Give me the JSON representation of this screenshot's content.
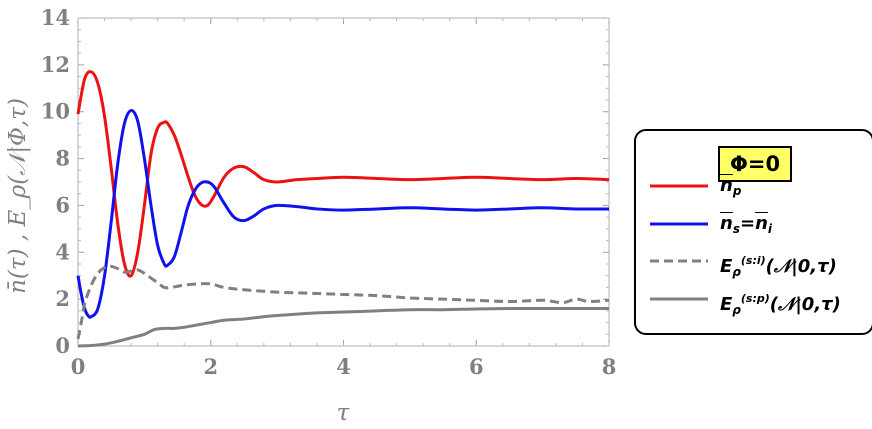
{
  "chart_data": {
    "type": "line",
    "xlabel": "τ",
    "ylabel": "n̄(τ) , E_ρ(𝒩|Φ,τ)",
    "xlim": [
      0,
      8
    ],
    "ylim": [
      0,
      14
    ],
    "xticks": [
      "0",
      "2",
      "4",
      "6",
      "8"
    ],
    "yticks": [
      "0",
      "2",
      "4",
      "6",
      "8",
      "10",
      "12",
      "14"
    ],
    "xtick_values": [
      0,
      2,
      4,
      6,
      8
    ],
    "ytick_values": [
      0,
      2,
      4,
      6,
      8,
      10,
      12,
      14
    ],
    "legend_title": "Φ=0",
    "legend_position": "right",
    "series": [
      {
        "name": "n̄_p",
        "color": "#ee1111",
        "style": "solid",
        "x": [
          0,
          0.1,
          0.2,
          0.3,
          0.4,
          0.5,
          0.6,
          0.7,
          0.8,
          0.9,
          1.0,
          1.1,
          1.2,
          1.3,
          1.35,
          1.45,
          1.55,
          1.65,
          1.75,
          1.85,
          1.95,
          2.05,
          2.2,
          2.35,
          2.5,
          2.65,
          2.8,
          3.0,
          3.3,
          3.6,
          4.0,
          4.5,
          5.0,
          5.5,
          6.0,
          6.5,
          7.0,
          7.5,
          8.0
        ],
        "y": [
          9.9,
          11.4,
          11.7,
          11.2,
          9.8,
          7.6,
          5.2,
          3.5,
          3.0,
          4.0,
          6.0,
          8.2,
          9.3,
          9.55,
          9.5,
          9.0,
          8.2,
          7.3,
          6.5,
          6.05,
          6.0,
          6.4,
          7.2,
          7.6,
          7.65,
          7.4,
          7.1,
          7.0,
          7.1,
          7.15,
          7.2,
          7.15,
          7.1,
          7.15,
          7.2,
          7.15,
          7.1,
          7.15,
          7.1
        ]
      },
      {
        "name": "n̄_s=n̄_i",
        "color": "#1111ee",
        "style": "solid",
        "x": [
          0,
          0.05,
          0.1,
          0.15,
          0.2,
          0.3,
          0.4,
          0.5,
          0.6,
          0.7,
          0.8,
          0.9,
          1.0,
          1.1,
          1.2,
          1.3,
          1.35,
          1.45,
          1.55,
          1.65,
          1.75,
          1.85,
          1.95,
          2.05,
          2.2,
          2.35,
          2.5,
          2.65,
          2.8,
          3.0,
          3.3,
          3.6,
          4.0,
          4.5,
          5.0,
          5.5,
          6.0,
          6.5,
          7.0,
          7.5,
          8.0
        ],
        "y": [
          3.0,
          2.2,
          1.6,
          1.3,
          1.25,
          1.6,
          3.0,
          5.3,
          7.8,
          9.5,
          10.05,
          9.6,
          8.0,
          6.0,
          4.3,
          3.5,
          3.45,
          3.8,
          4.8,
          5.9,
          6.6,
          6.95,
          7.0,
          6.8,
          6.1,
          5.5,
          5.35,
          5.55,
          5.85,
          6.0,
          5.95,
          5.85,
          5.8,
          5.85,
          5.9,
          5.85,
          5.8,
          5.85,
          5.9,
          5.85,
          5.85
        ]
      },
      {
        "name": "E_ρ^(s:i)(𝒩|0,τ)",
        "color": "#808080",
        "style": "dashed",
        "x": [
          0,
          0.05,
          0.1,
          0.2,
          0.3,
          0.4,
          0.5,
          0.6,
          0.7,
          0.8,
          0.9,
          1.0,
          1.1,
          1.2,
          1.3,
          1.4,
          1.5,
          1.6,
          1.8,
          2.0,
          2.2,
          2.5,
          3.0,
          3.5,
          4.0,
          4.5,
          5.0,
          5.5,
          6.0,
          6.5,
          7.0,
          7.3,
          7.5,
          7.7,
          8.0
        ],
        "y": [
          0.3,
          1.0,
          1.8,
          2.6,
          3.1,
          3.35,
          3.4,
          3.3,
          3.15,
          3.2,
          3.25,
          3.1,
          2.9,
          2.7,
          2.5,
          2.5,
          2.55,
          2.6,
          2.65,
          2.65,
          2.5,
          2.4,
          2.3,
          2.25,
          2.2,
          2.15,
          2.05,
          2.0,
          1.95,
          1.9,
          1.95,
          1.85,
          2.0,
          1.9,
          1.95
        ]
      },
      {
        "name": "E_ρ^(s:p)(𝒩|0,τ)",
        "color": "#808080",
        "style": "solid",
        "x": [
          0,
          0.2,
          0.4,
          0.6,
          0.8,
          1.0,
          1.15,
          1.3,
          1.45,
          1.6,
          1.8,
          2.0,
          2.2,
          2.5,
          2.8,
          3.0,
          3.5,
          4.0,
          4.5,
          5.0,
          5.5,
          6.0,
          6.5,
          7.0,
          7.5,
          8.0
        ],
        "y": [
          0.0,
          0.02,
          0.08,
          0.2,
          0.35,
          0.5,
          0.7,
          0.75,
          0.75,
          0.8,
          0.9,
          1.0,
          1.1,
          1.15,
          1.25,
          1.3,
          1.4,
          1.45,
          1.5,
          1.55,
          1.55,
          1.58,
          1.6,
          1.6,
          1.6,
          1.6
        ]
      }
    ]
  }
}
